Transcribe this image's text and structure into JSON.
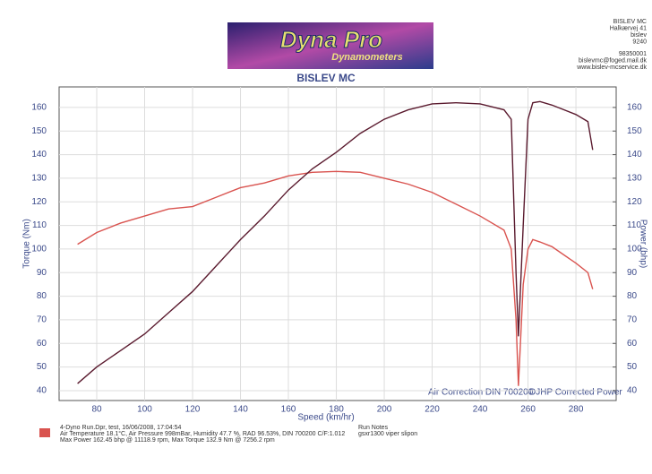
{
  "chart_data": {
    "type": "line",
    "logo_title": "Dyna Pro",
    "logo_subtitle": "Dynamometers",
    "contact": [
      "BISLEV MC",
      "Halkærvej 41",
      "bislev",
      "9240",
      "98350001",
      "bislevmc@foged.mail.dk",
      "www.bislev-mcservice.dk"
    ],
    "title": "BISLEV MC",
    "xlabel": "Speed (km/hr)",
    "ylabel": "Torque (Nm)",
    "y2label": "Power (bhp)",
    "annotations": [
      "Air Correction DIN 700200",
      "DJHP Corrected Power"
    ],
    "x": [
      72,
      80,
      90,
      100,
      110,
      120,
      130,
      140,
      150,
      160,
      170,
      180,
      190,
      200,
      210,
      220,
      230,
      240,
      250,
      253,
      255,
      256,
      258,
      260,
      262,
      265,
      270,
      280,
      285,
      287
    ],
    "series": [
      {
        "color": "#d9534f",
        "axis": "y",
        "values": [
          102,
          107,
          111,
          114,
          117,
          118,
          122,
          126,
          128,
          131,
          132.5,
          132.9,
          132.5,
          130,
          127.5,
          124,
          119,
          114,
          108,
          100,
          70,
          42,
          85,
          100,
          104,
          103,
          101,
          94,
          90,
          83
        ]
      },
      {
        "color": "#5a1a2e",
        "axis": "y2",
        "values": [
          43,
          50,
          57,
          64,
          73,
          82,
          93,
          104,
          114,
          125,
          134,
          141,
          149,
          155,
          159,
          161.5,
          162,
          161.5,
          159,
          155,
          90,
          63,
          110,
          155,
          162,
          162.5,
          161,
          157,
          154,
          142
        ]
      }
    ],
    "xlim": [
      64.3,
      296.8
    ],
    "xticks": [
      80,
      100,
      120,
      140,
      160,
      180,
      200,
      220,
      240,
      260,
      280
    ],
    "ylim": [
      35.8,
      168.7
    ],
    "yticks": [
      40,
      50,
      60,
      70,
      80,
      90,
      100,
      110,
      120,
      130,
      140,
      150,
      160
    ],
    "y2lim": [
      35.8,
      168.7
    ],
    "y2ticks": [
      40,
      50,
      60,
      70,
      80,
      90,
      100,
      110,
      120,
      130,
      140,
      150,
      160
    ],
    "grid": true,
    "notes": [
      "4-Dyno Run.Dpr,  test,  16/06/2008,  17:04:54",
      "Air Temperature 18.1°C, Air Pressure 998mBar, Humidity 47.7 %, RAD 96.53%,  DIN 700200  C/F:1.012",
      "Max Power 162.45 bhp @ 11118.9 rpm, Max Torque 132.9 Nm @ 7256.2 rpm"
    ],
    "run_notes_title": "Run Notes",
    "run_notes": "gsxr1300 viper slipon"
  }
}
